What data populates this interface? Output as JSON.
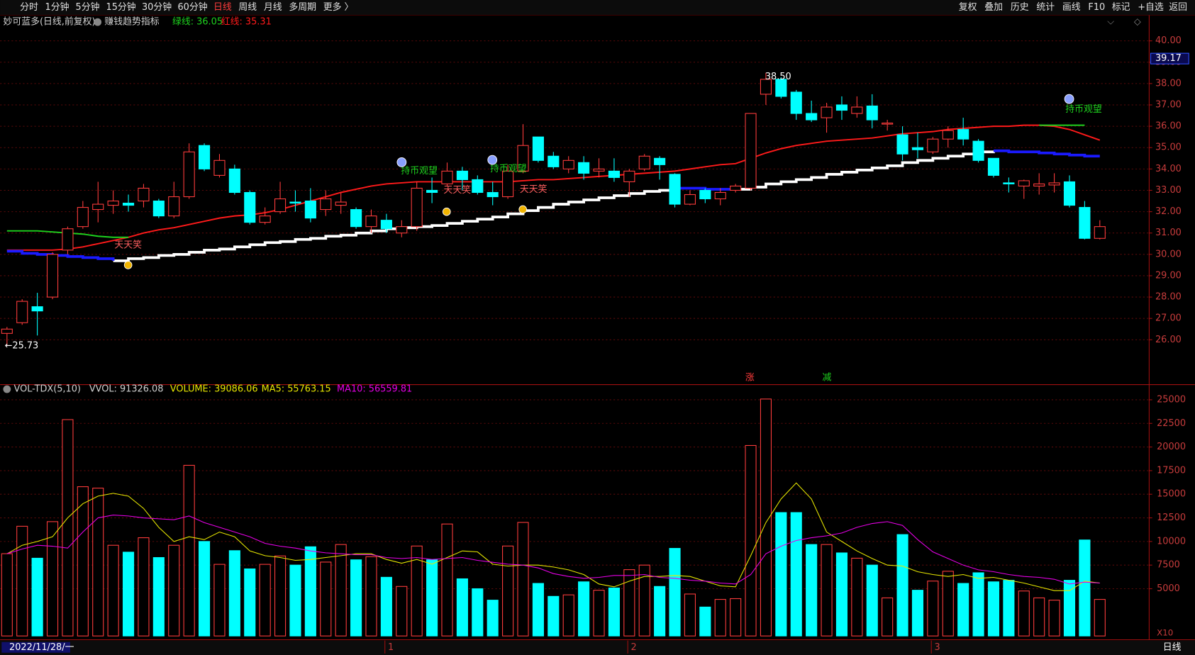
{
  "toolbar": {
    "left": [
      "分时",
      "1分钟",
      "5分钟",
      "15分钟",
      "30分钟",
      "60分钟",
      "日线",
      "周线",
      "月线",
      "多周期",
      "更多 〉"
    ],
    "right": [
      "复权",
      "叠加",
      "历史",
      "统计",
      "画线",
      "F10",
      "标记",
      "+自选",
      "返回"
    ]
  },
  "chart_data": [
    {
      "type": "candlestick",
      "title": "妙可蓝多(日线,前复权)",
      "subtitle": "赚钱趋势指标",
      "legend_texts": [
        "绿线: 36.05",
        "红线: 35.31"
      ],
      "categories": [
        "2022/11/28/一",
        null,
        null,
        null,
        null,
        null,
        null,
        null,
        null,
        null,
        null,
        null,
        null,
        null,
        null,
        null,
        null,
        null,
        null,
        null,
        null,
        null,
        null,
        null,
        null,
        "1",
        null,
        null,
        null,
        null,
        null,
        null,
        null,
        null,
        null,
        null,
        null,
        null,
        null,
        null,
        null,
        "2",
        null,
        null,
        null,
        null,
        null,
        null,
        null,
        null,
        null,
        null,
        null,
        null,
        null,
        null,
        null,
        null,
        null,
        null,
        null,
        "3",
        null,
        null,
        null,
        null,
        null,
        null,
        null,
        null,
        null,
        null,
        null
      ],
      "open": [
        26.3,
        26.8,
        27.55,
        28.0,
        30.2,
        31.3,
        32.1,
        32.3,
        32.4,
        32.5,
        32.5,
        31.8,
        32.7,
        35.1,
        33.7,
        34.0,
        32.9,
        31.5,
        32.0,
        32.45,
        32.5,
        32.1,
        32.3,
        32.1,
        31.3,
        31.6,
        31.0,
        31.3,
        33.0,
        33.3,
        33.9,
        33.5,
        32.9,
        32.7,
        33.9,
        35.5,
        34.6,
        34.0,
        34.3,
        33.9,
        33.9,
        33.4,
        34.0,
        34.5,
        33.75,
        32.35,
        33.0,
        32.6,
        33.0,
        33.1,
        37.5,
        38.2,
        37.6,
        36.6,
        36.4,
        37.0,
        36.6,
        36.95,
        36.1,
        35.6,
        35.0,
        34.8,
        35.4,
        35.85,
        35.3,
        34.5,
        33.35,
        33.2,
        33.2,
        33.25,
        33.4,
        32.2,
        30.75
      ],
      "high": [
        26.6,
        27.9,
        28.2,
        30.1,
        31.3,
        32.5,
        33.4,
        33.0,
        32.8,
        33.3,
        32.6,
        33.4,
        35.2,
        35.2,
        34.7,
        34.2,
        33.0,
        32.2,
        33.4,
        33.0,
        33.1,
        33.0,
        32.9,
        32.2,
        32.1,
        31.9,
        31.6,
        33.4,
        33.6,
        34.3,
        34.1,
        33.7,
        33.4,
        34.2,
        36.1,
        35.5,
        34.8,
        34.6,
        34.6,
        34.5,
        34.5,
        34.0,
        34.7,
        34.6,
        33.8,
        33.0,
        33.1,
        33.1,
        33.3,
        36.6,
        38.5,
        38.3,
        37.7,
        37.2,
        37.1,
        37.4,
        37.4,
        37.5,
        36.3,
        36.0,
        35.7,
        35.5,
        36.0,
        36.4,
        35.4,
        34.5,
        33.6,
        33.5,
        33.8,
        33.8,
        33.7,
        32.5,
        31.6
      ],
      "low": [
        25.73,
        26.7,
        26.2,
        27.9,
        30.0,
        31.2,
        31.5,
        31.9,
        32.0,
        32.2,
        31.7,
        31.7,
        32.6,
        33.9,
        33.6,
        32.8,
        31.4,
        31.4,
        31.9,
        32.0,
        31.5,
        31.8,
        31.9,
        31.2,
        31.0,
        31.0,
        30.8,
        31.1,
        32.4,
        33.2,
        33.0,
        32.8,
        32.3,
        32.6,
        33.8,
        34.3,
        34.0,
        33.8,
        33.5,
        33.6,
        33.4,
        32.7,
        33.9,
        33.5,
        32.2,
        32.3,
        32.4,
        32.3,
        32.9,
        33.0,
        37.0,
        37.3,
        36.3,
        36.2,
        35.7,
        36.3,
        36.4,
        35.9,
        35.8,
        34.4,
        34.5,
        34.7,
        35.0,
        35.1,
        34.3,
        33.6,
        32.9,
        32.6,
        32.8,
        32.9,
        32.2,
        30.7,
        30.7
      ],
      "close": [
        26.5,
        27.8,
        27.35,
        30.0,
        31.2,
        32.2,
        32.35,
        32.5,
        32.3,
        33.1,
        31.8,
        32.7,
        34.8,
        34.0,
        34.4,
        32.9,
        31.5,
        31.8,
        32.6,
        32.4,
        31.7,
        32.6,
        32.45,
        31.3,
        31.8,
        31.2,
        31.3,
        33.1,
        32.9,
        33.9,
        33.5,
        32.9,
        32.7,
        33.9,
        35.1,
        34.4,
        34.1,
        34.4,
        33.8,
        34.0,
        33.6,
        33.9,
        34.6,
        34.2,
        32.35,
        32.8,
        32.6,
        32.9,
        33.2,
        36.6,
        38.2,
        37.4,
        36.6,
        36.3,
        36.9,
        36.75,
        36.9,
        36.3,
        36.15,
        34.7,
        34.9,
        35.4,
        35.8,
        35.4,
        34.4,
        33.7,
        33.3,
        33.45,
        33.3,
        33.35,
        32.3,
        30.75,
        31.3
      ],
      "up_color": "#ff3c3c",
      "down_color": "#00ffff",
      "series": [
        {
          "name": "红线",
          "color": "#ff1a1a",
          "values": [
            30.2,
            30.2,
            30.2,
            30.2,
            30.25,
            30.35,
            30.5,
            30.65,
            30.8,
            31.0,
            31.15,
            31.25,
            31.4,
            31.55,
            31.7,
            31.8,
            31.85,
            31.95,
            32.1,
            32.3,
            32.5,
            32.7,
            32.9,
            33.05,
            33.2,
            33.3,
            33.35,
            33.4,
            33.4,
            33.4,
            33.4,
            33.4,
            33.4,
            33.4,
            33.45,
            33.5,
            33.5,
            33.55,
            33.6,
            33.65,
            33.7,
            33.75,
            33.8,
            33.85,
            33.9,
            34.0,
            34.1,
            34.2,
            34.25,
            34.5,
            34.75,
            34.95,
            35.1,
            35.2,
            35.3,
            35.35,
            35.4,
            35.45,
            35.55,
            35.65,
            35.7,
            35.75,
            35.85,
            35.9,
            35.95,
            36.0,
            36.0,
            36.05,
            36.05,
            36.0,
            35.85,
            35.6,
            35.35
          ]
        },
        {
          "name": "绿线",
          "color": "#1ed21e",
          "values": [
            31.1,
            31.1,
            31.1,
            31.05,
            31.0,
            30.95,
            30.85,
            30.8,
            30.8,
            null,
            null,
            null,
            null,
            null,
            null,
            null,
            null,
            null,
            null,
            null,
            null,
            null,
            null,
            null,
            null,
            null,
            null,
            null,
            null,
            null,
            null,
            null,
            null,
            null,
            null,
            null,
            null,
            null,
            null,
            null,
            null,
            null,
            null,
            null,
            null,
            null,
            null,
            null,
            null,
            null,
            null,
            null,
            null,
            null,
            null,
            null,
            null,
            null,
            null,
            null,
            null,
            null,
            null,
            null,
            null,
            null,
            null,
            null,
            36.05,
            36.05,
            36.05,
            36.05,
            null
          ]
        },
        {
          "color": "#ffffff",
          "values": [
            null,
            null,
            null,
            null,
            null,
            null,
            null,
            29.7,
            29.8,
            29.85,
            29.95,
            30.0,
            30.1,
            30.2,
            30.25,
            30.35,
            30.45,
            30.55,
            30.6,
            30.7,
            30.75,
            30.85,
            30.9,
            31.0,
            31.1,
            31.2,
            31.25,
            31.3,
            31.35,
            31.45,
            31.55,
            31.65,
            31.75,
            31.9,
            32.05,
            32.2,
            32.35,
            32.45,
            32.55,
            32.65,
            32.75,
            32.85,
            32.95,
            33.0,
            33.1,
            null,
            null,
            null,
            33.05,
            33.15,
            33.3,
            33.4,
            33.5,
            33.6,
            33.75,
            33.85,
            33.95,
            34.05,
            34.15,
            34.3,
            34.4,
            34.5,
            34.6,
            34.7,
            34.8,
            34.85,
            null,
            null,
            null,
            null,
            null,
            null,
            null
          ]
        },
        {
          "color": "#1a1aff",
          "values": [
            30.15,
            30.05,
            30.0,
            29.95,
            29.9,
            29.85,
            29.8,
            29.7,
            null,
            null,
            null,
            null,
            null,
            null,
            null,
            null,
            null,
            null,
            null,
            null,
            null,
            null,
            null,
            null,
            null,
            null,
            null,
            null,
            null,
            null,
            null,
            null,
            null,
            null,
            null,
            null,
            null,
            null,
            null,
            null,
            null,
            null,
            null,
            null,
            33.1,
            33.1,
            33.05,
            33.05,
            33.05,
            null,
            null,
            null,
            null,
            null,
            null,
            null,
            null,
            null,
            null,
            null,
            null,
            null,
            null,
            null,
            null,
            34.85,
            34.8,
            34.8,
            34.75,
            34.7,
            34.65,
            34.6,
            34.6
          ]
        }
      ],
      "annotations": [
        "天天笑",
        "天天笑",
        "天天笑",
        "持币观望",
        "持币观望",
        "持币观望",
        "←25.73",
        "38.50",
        "涨",
        "减"
      ],
      "last_price": 39.17,
      "ylim": [
        23.9,
        41.2
      ],
      "yticks": [
        {
          "value": 26,
          "label": "26.00"
        },
        {
          "value": 27,
          "label": "27.00"
        },
        {
          "value": 28,
          "label": "28.00"
        },
        {
          "value": 29,
          "label": "29.00"
        },
        {
          "value": 30,
          "label": "30.00"
        },
        {
          "value": 31,
          "label": "31.00"
        },
        {
          "value": 32,
          "label": "32.00"
        },
        {
          "value": 33,
          "label": "33.00"
        },
        {
          "value": 34,
          "label": "34.00"
        },
        {
          "value": 35,
          "label": "35.00"
        },
        {
          "value": 36,
          "label": "36.00"
        },
        {
          "value": 37,
          "label": "37.00"
        },
        {
          "value": 38,
          "label": "38.00"
        },
        {
          "value": 39,
          "label": "39.00"
        },
        {
          "value": 40,
          "label": "40.00"
        }
      ],
      "grid": true
    },
    {
      "type": "volume",
      "title": "VOL-TDX(5,10)",
      "legend_texts": [
        "VVOL: 91326.08",
        "VOLUME: 39086.06",
        "MA5: 55763.15",
        "MA10: 56559.81"
      ],
      "unit_label": "X10",
      "values": [
        8710,
        11610,
        8230,
        12100,
        22900,
        15800,
        15650,
        9600,
        8870,
        10400,
        8300,
        9600,
        18060,
        10000,
        7580,
        9030,
        7100,
        7580,
        8470,
        7500,
        9440,
        7820,
        9680,
        8060,
        8390,
        6210,
        5240,
        9520,
        8060,
        11850,
        6050,
        5000,
        3790,
        9520,
        12020,
        5560,
        4190,
        4350,
        5730,
        4840,
        5080,
        7020,
        7500,
        5240,
        9270,
        4440,
        3060,
        3870,
        3950,
        20160,
        25080,
        13060,
        13060,
        9680,
        9680,
        8790,
        8230,
        7500,
        4030,
        10730,
        4840,
        5810,
        6850,
        5560,
        6690,
        5730,
        5890,
        4760,
        4030,
        3790,
        5890,
        10160,
        3870
      ],
      "series": [
        {
          "name": "MA5",
          "color": "#e6e600",
          "values": [
            8700,
            9600,
            10000,
            10500,
            12500,
            14000,
            14800,
            15100,
            14800,
            13500,
            11500,
            10000,
            10500,
            10200,
            11000,
            10500,
            9000,
            8500,
            8300,
            8000,
            8100,
            8300,
            8500,
            8700,
            8700,
            8100,
            7700,
            8100,
            7600,
            8300,
            9000,
            8900,
            7600,
            7400,
            7500,
            7500,
            7300,
            7000,
            6500,
            5500,
            5200,
            5800,
            6300,
            6300,
            6400,
            6300,
            5800,
            5300,
            5200,
            8500,
            12000,
            14500,
            16200,
            14500,
            11000,
            10000,
            9000,
            8200,
            7500,
            7400,
            6800,
            6500,
            6300,
            6500,
            6100,
            6200,
            5900,
            5600,
            5200,
            4800,
            4800,
            5800,
            5600
          ]
        },
        {
          "name": "MA10",
          "color": "#e600e6",
          "values": [
            8700,
            9200,
            9600,
            9500,
            9300,
            11000,
            12500,
            12800,
            12700,
            12500,
            12400,
            12300,
            12700,
            12000,
            11500,
            11000,
            10500,
            9800,
            9500,
            9300,
            9000,
            8800,
            8700,
            8600,
            8600,
            8300,
            8200,
            8300,
            8100,
            8200,
            8300,
            8000,
            7800,
            7600,
            7500,
            7200,
            6600,
            6300,
            6100,
            6200,
            6400,
            6400,
            6500,
            6200,
            6100,
            5900,
            5800,
            5600,
            5500,
            6500,
            8700,
            9500,
            10100,
            10400,
            10600,
            10900,
            11500,
            11900,
            12100,
            11700,
            10200,
            8900,
            8200,
            7500,
            7000,
            6800,
            6500,
            6300,
            6200,
            6000,
            5500,
            5700,
            5600
          ]
        }
      ],
      "ylim": [
        0,
        26200
      ],
      "yticks": [
        5000,
        7500,
        10000,
        12500,
        15000,
        17500,
        20000,
        22500,
        25000
      ],
      "grid": true
    },
    {
      "type": "status",
      "labels": [
        "日线"
      ]
    }
  ]
}
